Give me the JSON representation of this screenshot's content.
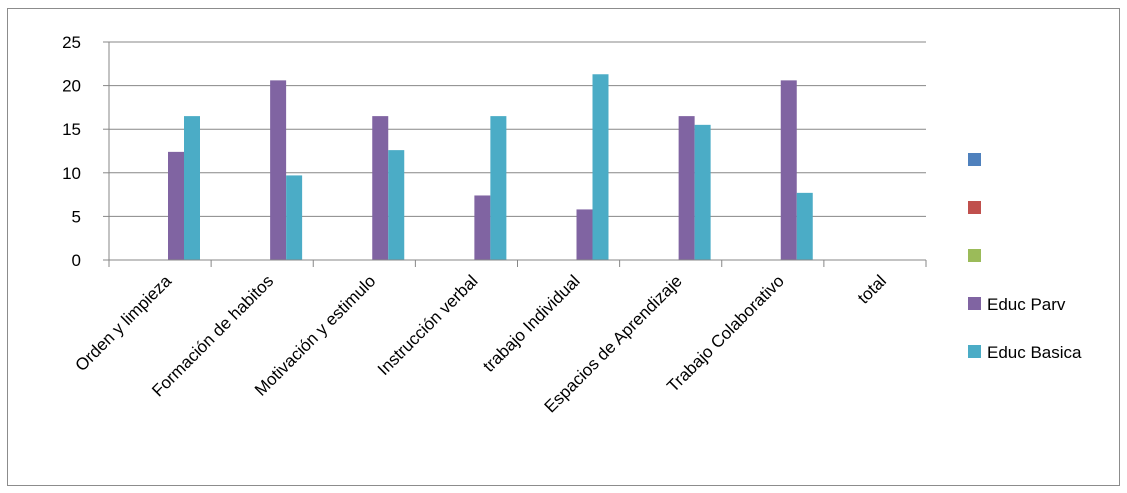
{
  "chart_data": {
    "type": "bar",
    "categories": [
      "Orden y limpieza",
      "Formación de habitos",
      "Motivación y estimulo",
      "Instrucción verbal",
      "trabajo Individual",
      "Espacios de Aprendizaje",
      "Trabajo Colaborativo",
      "total"
    ],
    "series": [
      {
        "name": "",
        "color": "#4F81BD",
        "values": [
          null,
          null,
          null,
          null,
          null,
          null,
          null,
          null
        ]
      },
      {
        "name": "",
        "color": "#C0504D",
        "values": [
          null,
          null,
          null,
          null,
          null,
          null,
          null,
          null
        ]
      },
      {
        "name": "",
        "color": "#9BBB59",
        "values": [
          null,
          null,
          null,
          null,
          null,
          null,
          null,
          null
        ]
      },
      {
        "name": "Educ Parv",
        "color": "#8064A2",
        "values": [
          12.4,
          20.6,
          16.5,
          7.4,
          5.8,
          16.5,
          20.6,
          null
        ]
      },
      {
        "name": "Educ Basica",
        "color": "#4BACC6",
        "values": [
          16.5,
          9.7,
          12.6,
          16.5,
          21.3,
          15.5,
          7.7,
          null
        ]
      }
    ],
    "yticks": [
      0,
      5,
      10,
      15,
      20,
      25
    ],
    "ylim": [
      0,
      25
    ],
    "grid": true,
    "legend_position": "right"
  }
}
